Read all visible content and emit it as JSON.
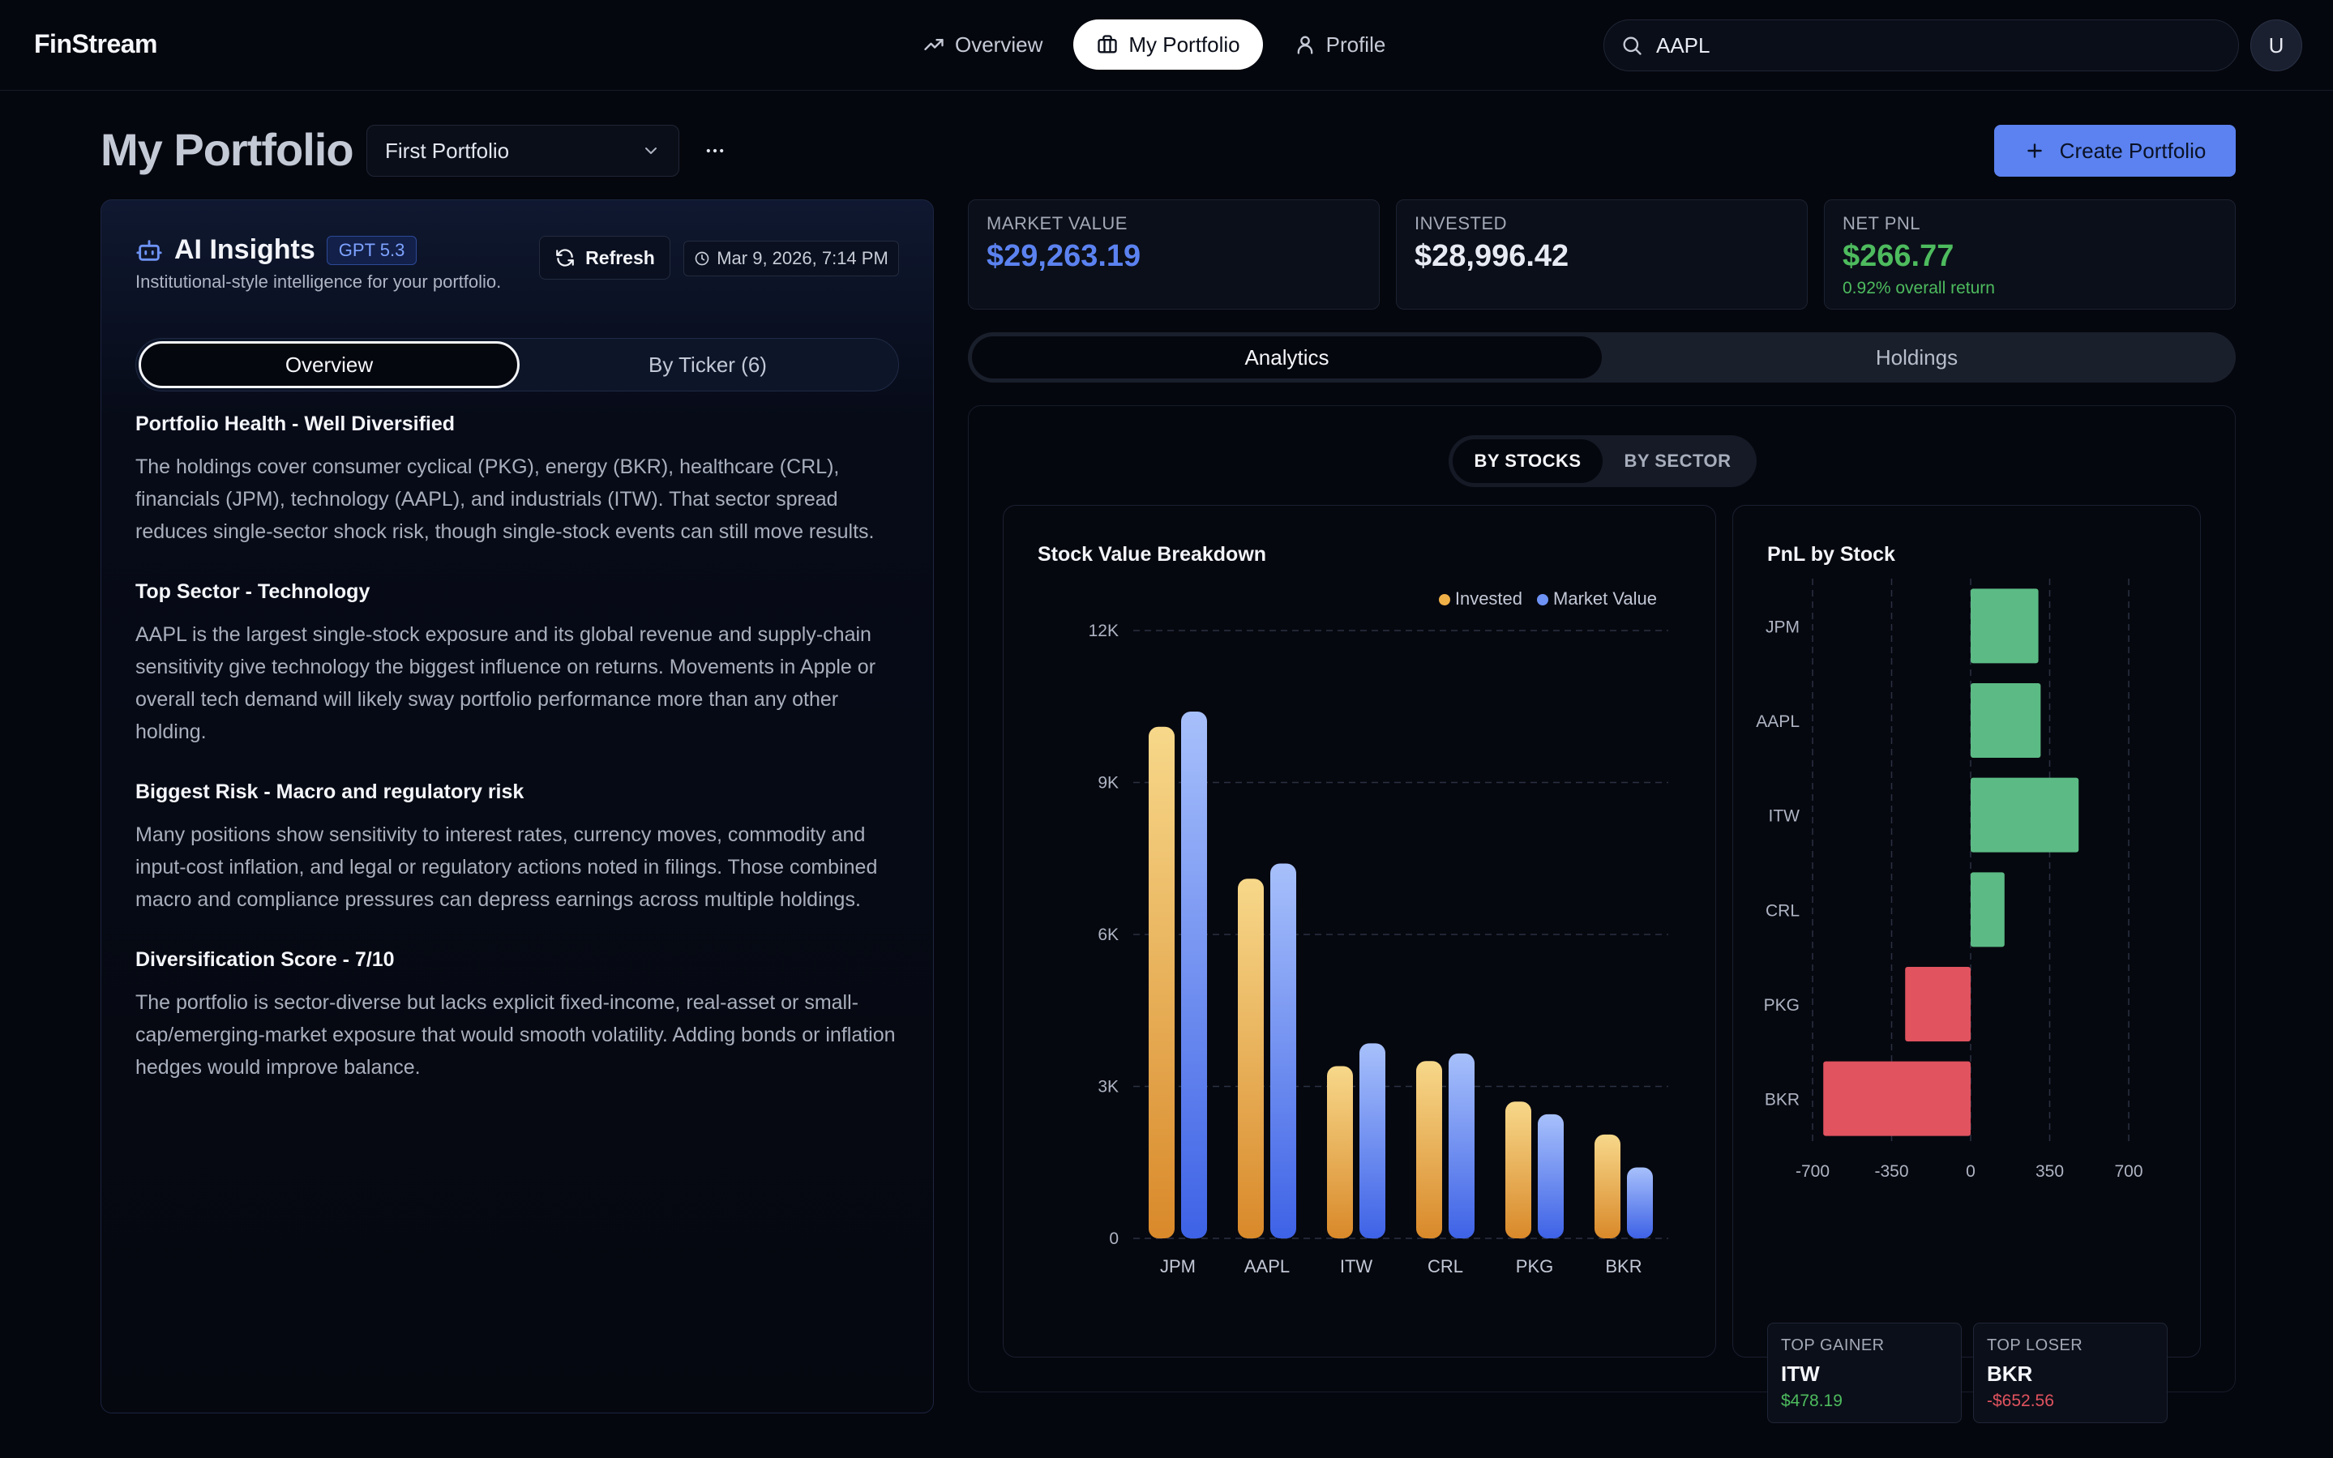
{
  "brand": "FinStream",
  "nav": [
    {
      "label": "Overview",
      "icon": "trending-up-icon"
    },
    {
      "label": "My Portfolio",
      "icon": "briefcase-icon"
    },
    {
      "label": "Profile",
      "icon": "user-icon"
    }
  ],
  "search": {
    "value": "AAPL"
  },
  "avatar": "U",
  "page": {
    "title": "My Portfolio",
    "portfolio_selected": "First Portfolio",
    "create_label": "Create Portfolio"
  },
  "insights": {
    "title": "AI Insights",
    "badge": "GPT 5.3",
    "subtitle": "Institutional-style intelligence for your portfolio.",
    "refresh_label": "Refresh",
    "timestamp": "Mar 9, 2026, 7:14 PM",
    "tabs": [
      "Overview",
      "By Ticker (6)"
    ],
    "sections": [
      {
        "heading": "Portfolio Health - Well Diversified",
        "body": "The holdings cover consumer cyclical (PKG), energy (BKR), healthcare (CRL), financials (JPM), technology (AAPL), and industrials (ITW). That sector spread reduces single-sector shock risk, though single-stock events can still move results."
      },
      {
        "heading": "Top Sector - Technology",
        "body": "AAPL is the largest single-stock exposure and its global revenue and supply-chain sensitivity give technology the biggest influence on returns. Movements in Apple or overall tech demand will likely sway portfolio performance more than any other holding."
      },
      {
        "heading": "Biggest Risk - Macro and regulatory risk",
        "body": "Many positions show sensitivity to interest rates, currency moves, commodity and input-cost inflation, and legal or regulatory actions noted in filings. Those combined macro and compliance pressures can depress earnings across multiple holdings."
      },
      {
        "heading": "Diversification Score - 7/10",
        "body": "The portfolio is sector-diverse but lacks explicit fixed-income, real-asset or small-cap/emerging-market exposure that would smooth volatility. Adding bonds or inflation hedges would improve balance."
      }
    ]
  },
  "stats": [
    {
      "label": "MARKET VALUE",
      "value": "$29,263.19",
      "color": "#5b82f0"
    },
    {
      "label": "INVESTED",
      "value": "$28,996.42",
      "color": "#e8ebf3"
    },
    {
      "label": "NET PNL",
      "value": "$266.77",
      "sub": "0.92% overall return",
      "color": "#4dbb5e"
    }
  ],
  "main_tabs": [
    "Analytics",
    "Holdings"
  ],
  "segment": [
    "BY STOCKS",
    "BY SECTOR"
  ],
  "colors": {
    "invested": "#f0b048",
    "market_value": "#6e93f5",
    "positive": "#5cbb85",
    "negative": "#e0535f"
  },
  "chart_data": [
    {
      "type": "bar",
      "title": "Stock Value Breakdown",
      "categories": [
        "JPM",
        "AAPL",
        "ITW",
        "CRL",
        "PKG",
        "BKR"
      ],
      "series": [
        {
          "name": "Invested",
          "values": [
            10100,
            7100,
            3400,
            3500,
            2700,
            2050
          ]
        },
        {
          "name": "Market Value",
          "values": [
            10400,
            7400,
            3850,
            3650,
            2450,
            1400
          ]
        }
      ],
      "ylim": [
        0,
        12000
      ],
      "yticks": [
        "0",
        "3K",
        "6K",
        "9K",
        "12K"
      ],
      "legend": "top-right",
      "grid": true
    },
    {
      "type": "bar",
      "orientation": "horizontal",
      "title": "PnL by Stock",
      "categories": [
        "JPM",
        "AAPL",
        "ITW",
        "CRL",
        "PKG",
        "BKR"
      ],
      "values": [
        300,
        310,
        478.19,
        150,
        -290,
        -652.56
      ],
      "xlim": [
        -700,
        700
      ],
      "xticks": [
        "-700",
        "-350",
        "0",
        "350",
        "700"
      ],
      "grid": true
    }
  ],
  "top_gainer": {
    "label": "TOP GAINER",
    "ticker": "ITW",
    "value": "$478.19"
  },
  "top_loser": {
    "label": "TOP LOSER",
    "ticker": "BKR",
    "value": "-$652.56"
  }
}
